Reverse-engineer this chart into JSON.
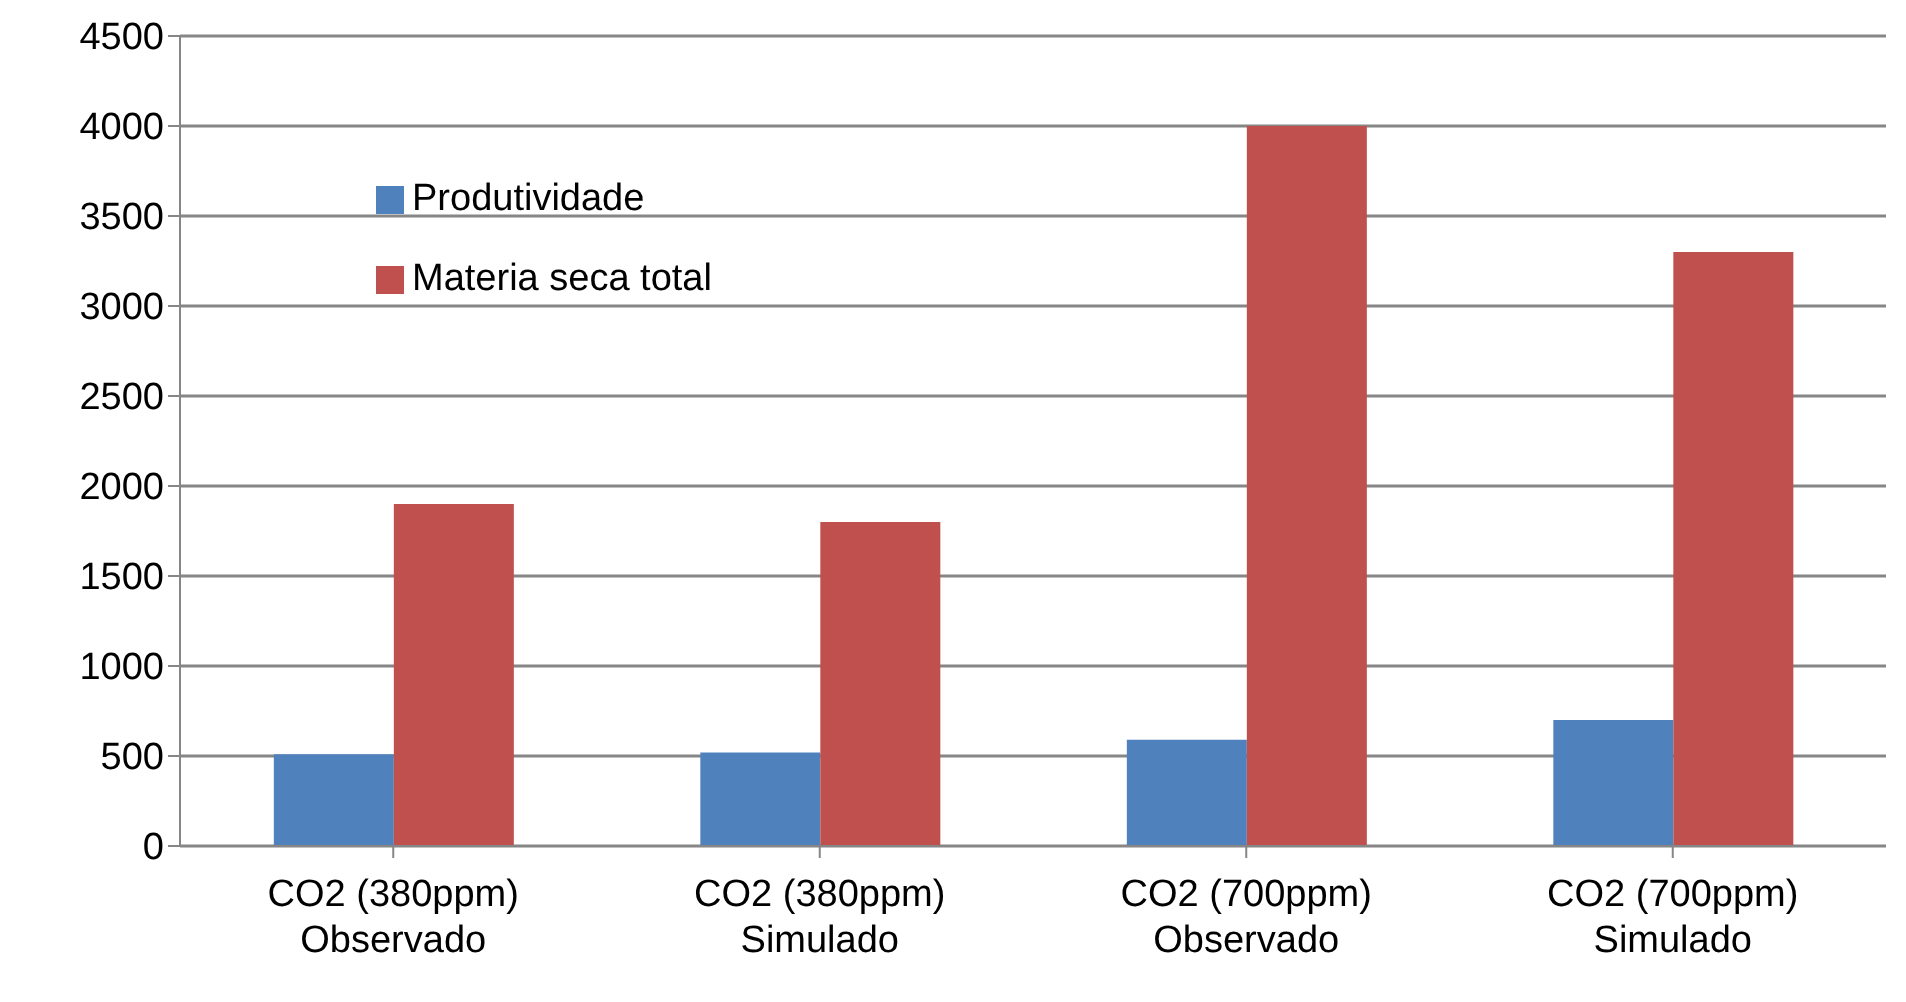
{
  "chart_data": {
    "type": "bar",
    "categories": [
      "CO2 (380ppm)\nObservado",
      "CO2 (380ppm)\nSimulado",
      "CO2 (700ppm)\nObservado",
      "CO2 (700ppm)\nSimulado"
    ],
    "series": [
      {
        "name": "Produtividade",
        "color": "#4f81bd",
        "values": [
          510,
          520,
          590,
          700
        ]
      },
      {
        "name": "Materia seca total",
        "color": "#c0504d",
        "values": [
          1900,
          1800,
          4000,
          3300
        ]
      }
    ],
    "ylim": [
      0,
      4500
    ],
    "yticks": [
      0,
      500,
      1000,
      1500,
      2000,
      2500,
      3000,
      3500,
      4000,
      4500
    ],
    "grid": "y",
    "legend": "top left"
  }
}
